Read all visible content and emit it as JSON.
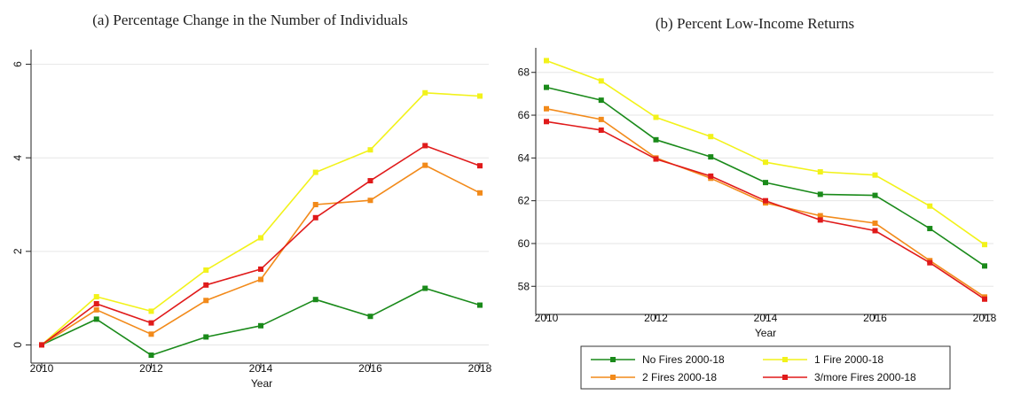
{
  "chart_data": [
    {
      "type": "line",
      "title": "(a)  Percentage Change in the Number of Individuals",
      "xlabel": "Year",
      "ylabel": "",
      "xlim": [
        2010,
        2018
      ],
      "ylim": [
        -0.2,
        6.2
      ],
      "xticks": [
        "2010",
        "2012",
        "2014",
        "2016",
        "2018"
      ],
      "yticks": [
        "0",
        "2",
        "4",
        "6"
      ],
      "grid": true,
      "x": [
        2010,
        2011,
        2012,
        2013,
        2014,
        2015,
        2016,
        2017,
        2018
      ],
      "series": [
        {
          "name": "No Fires 2000-18",
          "color": "#1a8a1a",
          "values": [
            0,
            0.55,
            -0.22,
            0.17,
            0.41,
            0.97,
            0.61,
            1.21,
            0.85
          ]
        },
        {
          "name": "1 Fire 2000-18",
          "color": "#f2f21a",
          "values": [
            0,
            1.03,
            0.72,
            1.6,
            2.29,
            3.69,
            4.17,
            5.39,
            5.32
          ]
        },
        {
          "name": "2 Fires 2000-18",
          "color": "#f28a1a",
          "values": [
            0,
            0.75,
            0.23,
            0.95,
            1.4,
            3.0,
            3.09,
            3.84,
            3.25
          ]
        },
        {
          "name": "3/more Fires 2000-18",
          "color": "#e01a1a",
          "values": [
            0,
            0.88,
            0.47,
            1.28,
            1.62,
            2.72,
            3.51,
            4.26,
            3.83
          ]
        }
      ]
    },
    {
      "type": "line",
      "title": "(b)  Percent Low-Income Returns",
      "xlabel": "Year",
      "ylabel": "",
      "xlim": [
        2010,
        2018
      ],
      "ylim": [
        57.1,
        68.9
      ],
      "xticks": [
        "2010",
        "2012",
        "2014",
        "2016",
        "2018"
      ],
      "yticks": [
        "58",
        "60",
        "62",
        "64",
        "66",
        "68"
      ],
      "grid": true,
      "x": [
        2010,
        2011,
        2012,
        2013,
        2014,
        2015,
        2016,
        2017,
        2018
      ],
      "series": [
        {
          "name": "No Fires 2000-18",
          "color": "#1a8a1a",
          "values": [
            67.3,
            66.7,
            64.85,
            64.05,
            62.85,
            62.3,
            62.25,
            60.7,
            58.95
          ]
        },
        {
          "name": "1 Fire 2000-18",
          "color": "#f2f21a",
          "values": [
            68.55,
            67.6,
            65.9,
            65.0,
            63.8,
            63.35,
            63.2,
            61.75,
            59.95
          ]
        },
        {
          "name": "2 Fires 2000-18",
          "color": "#f28a1a",
          "values": [
            66.3,
            65.8,
            64.0,
            63.05,
            61.9,
            61.3,
            60.95,
            59.2,
            57.5
          ]
        },
        {
          "name": "3/more Fires 2000-18",
          "color": "#e01a1a",
          "values": [
            65.7,
            65.3,
            63.95,
            63.15,
            62.0,
            61.1,
            60.6,
            59.1,
            57.4
          ]
        }
      ]
    }
  ],
  "legend": {
    "placement": "bottom-center",
    "items": [
      {
        "label": "No Fires 2000-18",
        "color": "#1a8a1a"
      },
      {
        "label": "1 Fire 2000-18",
        "color": "#f2f21a"
      },
      {
        "label": "2 Fires 2000-18",
        "color": "#f28a1a"
      },
      {
        "label": "3/more Fires 2000-18",
        "color": "#e01a1a"
      }
    ]
  }
}
